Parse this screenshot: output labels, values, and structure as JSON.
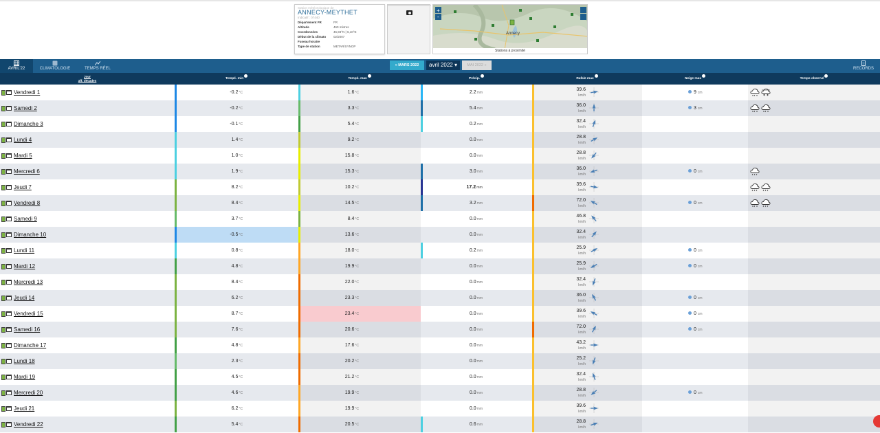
{
  "station": {
    "supertitle": "Station météorologique de",
    "name": "ANNECY-MEYTHET",
    "indicatif": "Indicatif : 07440",
    "fields": [
      {
        "k": "Département FR",
        "v": "FR"
      },
      {
        "k": "Altitude",
        "v": "460 mètres"
      },
      {
        "k": "Coordonnées",
        "v": "45,93°N | 6,10°E"
      },
      {
        "k": "Début de la climato",
        "v": "02/2007"
      },
      {
        "k": "Fuseau horaire",
        "v": ""
      },
      {
        "k": "Type de station",
        "v": "METAR/SYNOP"
      }
    ]
  },
  "map": {
    "caption": "Stations à proximité",
    "city_label": "Annecy",
    "zoom_in": "+",
    "zoom_out": "-"
  },
  "nav": {
    "tabs": [
      {
        "label": "AVRIL'22",
        "icon": "calendar-grid-icon",
        "active": true
      },
      {
        "label": "CLIMATOLOGIE",
        "icon": "globe-icon",
        "active": false
      },
      {
        "label": "TEMPS RÉEL",
        "icon": "chart-line-icon",
        "active": false
      }
    ],
    "records_label": "RECORDS",
    "prev_month": "« MARS 2022",
    "current_month": "avril 2022",
    "next_month": "MAI 2022 »"
  },
  "columns": {
    "day": "Jour",
    "day_sub": "aff. décades",
    "tmin": "Tempé. min",
    "tmax": "Tempé. max",
    "precip": "Précip.",
    "wind": "Rafale max",
    "snow": "Neige max",
    "weather": "Temps observé"
  },
  "units": {
    "temp": "°C",
    "precip": "mm",
    "wind": "km/h",
    "snow": "cm"
  },
  "colors": {
    "nav": "#1e5e8d",
    "header": "#0f3a5d",
    "prev_button": "#33aacc",
    "cold_highlight": "#bedcf5",
    "hot_highlight": "#f9cbcf"
  },
  "days": [
    {
      "label": "Vendredi 1",
      "tmin": "-0.2",
      "tmax": "1.6",
      "precip": "2.2",
      "wind": "39.6",
      "wind_dir": 80,
      "snow": "9",
      "weather": [
        "snow-cloud-icon",
        "snow-heavy-icon"
      ]
    },
    {
      "label": "Samedi 2",
      "tmin": "-0.2",
      "tmax": "3.3",
      "precip": "5.4",
      "wind": "36.0",
      "wind_dir": 0,
      "snow": "3",
      "weather": [
        "snow-cloud-icon",
        "snow-cloud-icon"
      ]
    },
    {
      "label": "Dimanche 3",
      "tmin": "-0.1",
      "tmax": "5.4",
      "precip": "0.2",
      "wind": "32.4",
      "wind_dir": 20,
      "snow": "",
      "weather": []
    },
    {
      "label": "Lundi 4",
      "tmin": "1.4",
      "tmax": "9.2",
      "precip": "0.0",
      "wind": "28.8",
      "wind_dir": 60,
      "snow": "",
      "weather": []
    },
    {
      "label": "Mardi 5",
      "tmin": "1.0",
      "tmax": "15.8",
      "precip": "0.0",
      "wind": "28.8",
      "wind_dir": 220,
      "snow": "",
      "weather": []
    },
    {
      "label": "Mercredi 6",
      "tmin": "1.9",
      "tmax": "15.3",
      "precip": "3.0",
      "wind": "36.0",
      "wind_dir": 250,
      "snow": "0",
      "weather": [
        "rain-cloud-icon"
      ]
    },
    {
      "label": "Jeudi 7",
      "tmin": "8.2",
      "tmax": "10.2",
      "precip": "17.2",
      "wind": "39.6",
      "wind_dir": 100,
      "snow": "",
      "weather": [
        "rain-cloud-icon",
        "rain-cloud-icon"
      ]
    },
    {
      "label": "Vendredi 8",
      "tmin": "8.4",
      "tmax": "14.5",
      "precip": "3.2",
      "wind": "72.0",
      "wind_dir": 300,
      "snow": "0",
      "weather": [
        "snow-cloud-icon",
        "rain-cloud-icon"
      ]
    },
    {
      "label": "Samedi 9",
      "tmin": "3.7",
      "tmax": "8.4",
      "precip": "0.0",
      "wind": "46.8",
      "wind_dir": 320,
      "snow": "",
      "weather": []
    },
    {
      "label": "Dimanche 10",
      "tmin": "-0.5",
      "tmax": "13.6",
      "precip": "0.0",
      "wind": "32.4",
      "wind_dir": 40,
      "snow": "",
      "weather": []
    },
    {
      "label": "Lundi 11",
      "tmin": "0.8",
      "tmax": "18.0",
      "precip": "0.2",
      "wind": "25.9",
      "wind_dir": 60,
      "snow": "0",
      "weather": []
    },
    {
      "label": "Mardi 12",
      "tmin": "4.8",
      "tmax": "19.9",
      "precip": "0.0",
      "wind": "25.9",
      "wind_dir": 240,
      "snow": "0",
      "weather": []
    },
    {
      "label": "Mercredi 13",
      "tmin": "8.4",
      "tmax": "22.0",
      "precip": "0.0",
      "wind": "32.4",
      "wind_dir": 200,
      "snow": "",
      "weather": []
    },
    {
      "label": "Jeudi 14",
      "tmin": "6.2",
      "tmax": "23.3",
      "precip": "0.0",
      "wind": "36.0",
      "wind_dir": 330,
      "snow": "0",
      "weather": []
    },
    {
      "label": "Vendredi 15",
      "tmin": "8.7",
      "tmax": "23.4",
      "precip": "0.0",
      "wind": "39.6",
      "wind_dir": 300,
      "snow": "0",
      "weather": []
    },
    {
      "label": "Samedi 16",
      "tmin": "7.6",
      "tmax": "20.6",
      "precip": "0.0",
      "wind": "72.0",
      "wind_dir": 30,
      "snow": "0",
      "weather": []
    },
    {
      "label": "Dimanche 17",
      "tmin": "4.8",
      "tmax": "17.6",
      "precip": "0.0",
      "wind": "43.2",
      "wind_dir": 90,
      "snow": "",
      "weather": []
    },
    {
      "label": "Lundi 18",
      "tmin": "2.3",
      "tmax": "20.2",
      "precip": "0.0",
      "wind": "25.2",
      "wind_dir": 200,
      "snow": "",
      "weather": []
    },
    {
      "label": "Mardi 19",
      "tmin": "4.5",
      "tmax": "21.2",
      "precip": "0.0",
      "wind": "32.4",
      "wind_dir": 340,
      "snow": "",
      "weather": []
    },
    {
      "label": "Mercredi 20",
      "tmin": "4.6",
      "tmax": "19.9",
      "precip": "0.0",
      "wind": "28.8",
      "wind_dir": 230,
      "snow": "0",
      "weather": []
    },
    {
      "label": "Jeudi 21",
      "tmin": "6.2",
      "tmax": "19.9",
      "precip": "0.0",
      "wind": "39.6",
      "wind_dir": 90,
      "snow": "",
      "weather": []
    },
    {
      "label": "Vendredi 22",
      "tmin": "5.4",
      "tmax": "20.5",
      "precip": "0.6",
      "wind": "28.8",
      "wind_dir": 70,
      "snow": "",
      "weather": []
    }
  ]
}
